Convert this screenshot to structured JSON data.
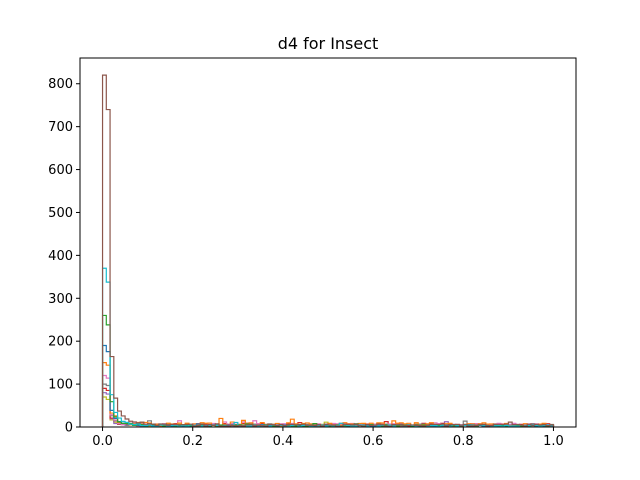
{
  "chart_data": {
    "type": "line",
    "title": "d4 for Insect",
    "xlabel": "",
    "ylabel": "",
    "xlim": [
      -0.05,
      1.05
    ],
    "ylim": [
      0,
      860
    ],
    "xticks": [
      0.0,
      0.2,
      0.4,
      0.6,
      0.8,
      1.0
    ],
    "xtick_labels": [
      "0.0",
      "0.2",
      "0.4",
      "0.6",
      "0.8",
      "1.0"
    ],
    "yticks": [
      0,
      100,
      200,
      300,
      400,
      500,
      600,
      700,
      800
    ],
    "ytick_labels": [
      "0",
      "100",
      "200",
      "300",
      "400",
      "500",
      "600",
      "700",
      "800"
    ],
    "grid": false,
    "legend": "none",
    "colors": [
      "#1f77b4",
      "#ff7f0e",
      "#2ca02c",
      "#d62728",
      "#9467bd",
      "#8c564b",
      "#e377c2",
      "#7f7f7f",
      "#bcbd22",
      "#17becf"
    ],
    "series": [
      {
        "color": "#8c564b",
        "peak": 820,
        "tail": 4
      },
      {
        "color": "#17becf",
        "peak": 370,
        "tail": 3
      },
      {
        "color": "#2ca02c",
        "peak": 260,
        "tail": 3
      },
      {
        "color": "#1f77b4",
        "peak": 190,
        "tail": 3
      },
      {
        "color": "#ff7f0e",
        "peak": 150,
        "tail": 6
      },
      {
        "color": "#e377c2",
        "peak": 120,
        "tail": 5
      },
      {
        "color": "#7f7f7f",
        "peak": 100,
        "tail": 4
      },
      {
        "color": "#d62728",
        "peak": 90,
        "tail": 5
      },
      {
        "color": "#9467bd",
        "peak": 80,
        "tail": 4
      },
      {
        "color": "#bcbd22",
        "peak": 70,
        "tail": 4
      }
    ]
  }
}
